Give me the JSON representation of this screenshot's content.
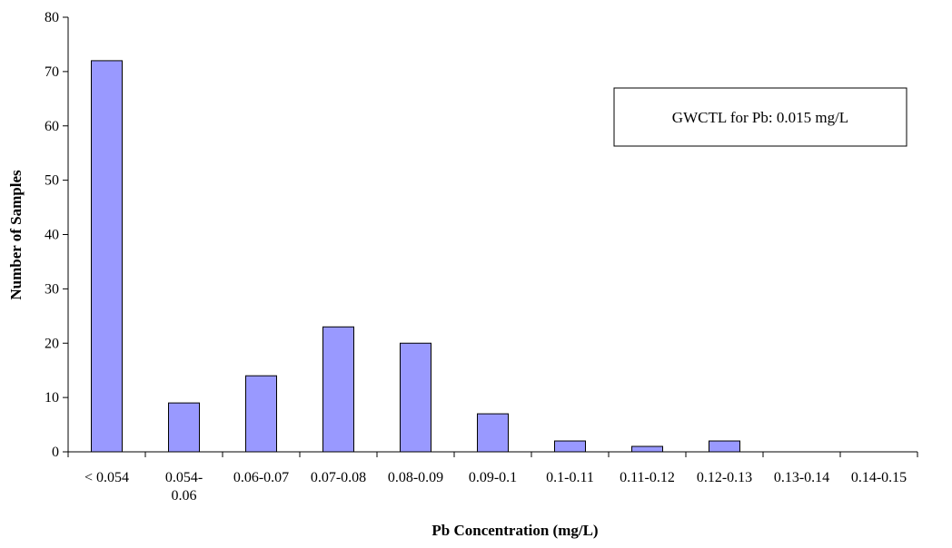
{
  "chart_data": {
    "type": "bar",
    "categories": [
      "< 0.054",
      "0.054-0.06",
      "0.06-0.07",
      "0.07-0.08",
      "0.08-0.09",
      "0.09-0.1",
      "0.1-0.11",
      "0.11-0.12",
      "0.12-0.13",
      "0.13-0.14",
      "0.14-0.15"
    ],
    "category_lines": [
      [
        "< 0.054"
      ],
      [
        "0.054-",
        "0.06"
      ],
      [
        "0.06-0.07"
      ],
      [
        "0.07-0.08"
      ],
      [
        "0.08-0.09"
      ],
      [
        "0.09-0.1"
      ],
      [
        "0.1-0.11"
      ],
      [
        "0.11-0.12"
      ],
      [
        "0.12-0.13"
      ],
      [
        "0.13-0.14"
      ],
      [
        "0.14-0.15"
      ]
    ],
    "values": [
      72,
      9,
      14,
      23,
      20,
      7,
      2,
      1,
      2,
      0,
      0
    ],
    "title": "",
    "xlabel": "Pb Concentration (mg/L)",
    "ylabel": "Number of Samples",
    "ylim": [
      0,
      80
    ],
    "yticks": [
      0,
      10,
      20,
      30,
      40,
      50,
      60,
      70,
      80
    ],
    "grid": false,
    "bar_color": "#9999ff",
    "annotation": "GWCTL for Pb: 0.015 mg/L",
    "annotation_placement": "top-right"
  }
}
